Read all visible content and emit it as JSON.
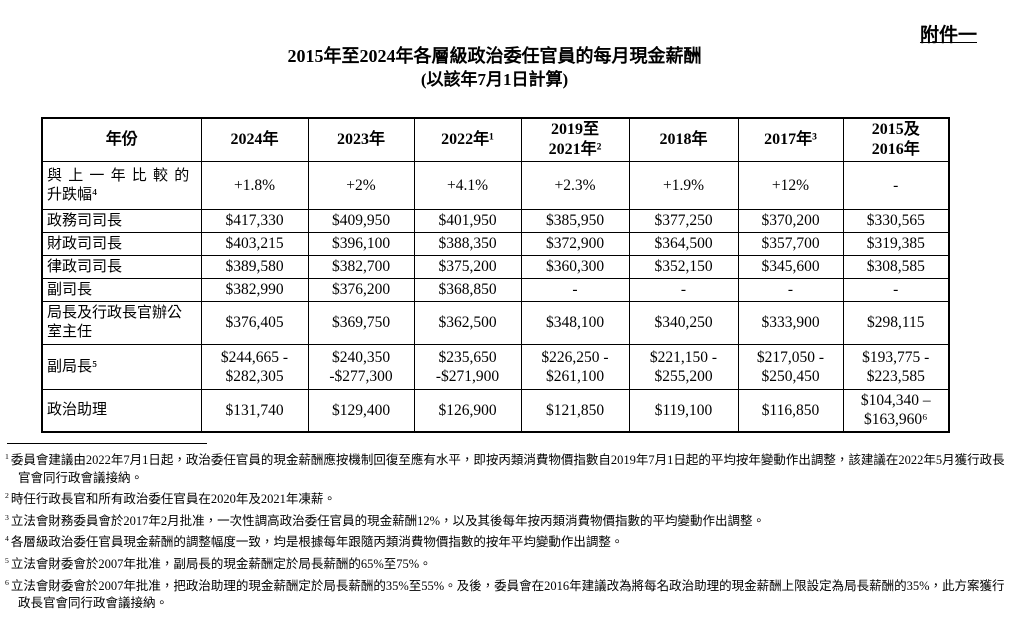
{
  "page": {
    "attachment_label": "附件一",
    "title_line1": "2015年至2024年各層級政治委任官員的每月現金薪酬",
    "title_line2": "(以該年7月1日計算)"
  },
  "table": {
    "header": [
      "年份",
      "2024年",
      "2023年",
      "2022年¹",
      "2019至\n2021年²",
      "2018年",
      "2017年³",
      "2015及\n2016年"
    ],
    "rows": [
      {
        "label": "與上一年比較的\n升跌幅⁴",
        "cells": [
          "+1.8%",
          "+2%",
          "+4.1%",
          "+2.3%",
          "+1.9%",
          "+12%",
          "-"
        ]
      },
      {
        "label": "政務司司長",
        "cells": [
          "$417,330",
          "$409,950",
          "$401,950",
          "$385,950",
          "$377,250",
          "$370,200",
          "$330,565"
        ]
      },
      {
        "label": "財政司司長",
        "cells": [
          "$403,215",
          "$396,100",
          "$388,350",
          "$372,900",
          "$364,500",
          "$357,700",
          "$319,385"
        ]
      },
      {
        "label": "律政司司長",
        "cells": [
          "$389,580",
          "$382,700",
          "$375,200",
          "$360,300",
          "$352,150",
          "$345,600",
          "$308,585"
        ]
      },
      {
        "label": "副司長",
        "cells": [
          "$382,990",
          "$376,200",
          "$368,850",
          "-",
          "-",
          "-",
          "-"
        ]
      },
      {
        "label": "局長及行政長官辦公\n室主任",
        "cells": [
          "$376,405",
          "$369,750",
          "$362,500",
          "$348,100",
          "$340,250",
          "$333,900",
          "$298,115"
        ]
      },
      {
        "label": "副局長⁵",
        "cells": [
          "$244,665 -\n$282,305",
          "$240,350\n-$277,300",
          "$235,650\n-$271,900",
          "$226,250 -\n$261,100",
          "$221,150 -\n$255,200",
          "$217,050 -\n$250,450",
          "$193,775 -\n$223,585"
        ]
      },
      {
        "label": "政治助理",
        "cells": [
          "$131,740",
          "$129,400",
          "$126,900",
          "$121,850",
          "$119,100",
          "$116,850",
          "$104,340 –\n$163,960⁶"
        ]
      }
    ]
  },
  "footnotes": [
    {
      "marker": "1",
      "text": "委員會建議由2022年7月1日起，政治委任官員的現金薪酬應按機制回復至應有水平，即按丙類消費物價指數自2019年7月1日起的平均按年變動作出調整，該建議在2022年5月獲行政長官會同行政會議接納。"
    },
    {
      "marker": "2",
      "text": "時任行政長官和所有政治委任官員在2020年及2021年凍薪。"
    },
    {
      "marker": "3",
      "text": "立法會財務委員會於2017年2月批准，一次性調高政治委任官員的現金薪酬12%，以及其後每年按丙類消費物價指數的平均變動作出調整。"
    },
    {
      "marker": "4",
      "text": "各層級政治委任官員現金薪酬的調整幅度一致，均是根據每年跟隨丙類消費物價指數的按年平均變動作出調整。"
    },
    {
      "marker": "5",
      "text": "立法會財委會於2007年批准，副局長的現金薪酬定於局長薪酬的65%至75%。"
    },
    {
      "marker": "6",
      "text": "立法會財委會於2007年批准，把政治助理的現金薪酬定於局長薪酬的35%至55%。及後，委員會在2016年建議改為將每名政治助理的現金薪酬上限設定為局長薪酬的35%，此方案獲行政長官會同行政會議接納。"
    }
  ]
}
